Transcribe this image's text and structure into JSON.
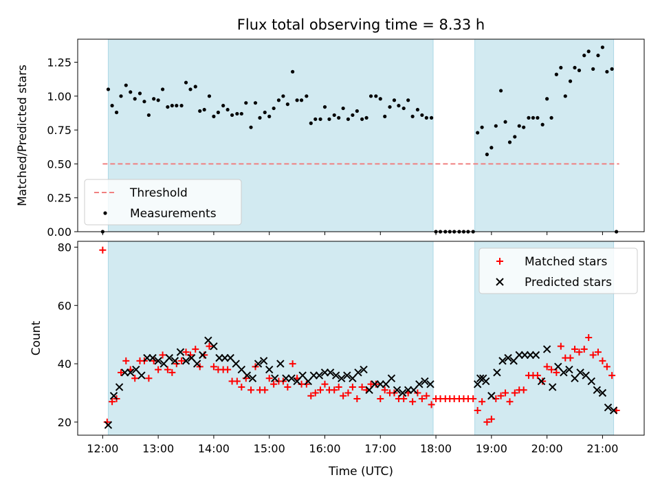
{
  "chart_data": {
    "title": "Flux total observing time = 8.33 h",
    "xlabel": "Time (UTC)",
    "xlim": [
      11.55,
      21.75
    ],
    "xticks": [
      {
        "v": 12,
        "label": "12:00"
      },
      {
        "v": 13,
        "label": "13:00"
      },
      {
        "v": 14,
        "label": "14:00"
      },
      {
        "v": 15,
        "label": "15:00"
      },
      {
        "v": 16,
        "label": "16:00"
      },
      {
        "v": 17,
        "label": "17:00"
      },
      {
        "v": 18,
        "label": "18:00"
      },
      {
        "v": 19,
        "label": "19:00"
      },
      {
        "v": 20,
        "label": "20:00"
      },
      {
        "v": 21,
        "label": "21:00"
      }
    ],
    "shaded_spans": [
      [
        12.1,
        17.95
      ],
      [
        18.7,
        21.2
      ]
    ],
    "shade_color": "#add8e6",
    "panels": [
      {
        "type": "scatter",
        "ylabel": "Matched/Predicted stars",
        "ylim": [
          0,
          1.42
        ],
        "yticks": [
          {
            "v": 0,
            "label": "0.00"
          },
          {
            "v": 0.25,
            "label": "0.25"
          },
          {
            "v": 0.5,
            "label": "0.50"
          },
          {
            "v": 0.75,
            "label": "0.75"
          },
          {
            "v": 1.0,
            "label": "1.00"
          },
          {
            "v": 1.25,
            "label": "1.25"
          }
        ],
        "legend": {
          "position": "lower-left",
          "entries": [
            {
              "label": "Threshold",
              "style": "dashed-line",
              "color": "#f08080"
            },
            {
              "label": "Measurements",
              "style": "dot",
              "color": "#000000"
            }
          ]
        },
        "threshold": {
          "name": "Threshold",
          "value": 0.5,
          "x_range": [
            12.0,
            21.3
          ],
          "color": "#f08080"
        },
        "series": [
          {
            "name": "Measurements",
            "marker": "dot",
            "color": "#000000",
            "x": [
              12.0,
              12.1,
              12.17,
              12.25,
              12.33,
              12.42,
              12.5,
              12.58,
              12.67,
              12.75,
              12.83,
              12.92,
              13.0,
              13.08,
              13.17,
              13.25,
              13.33,
              13.42,
              13.5,
              13.58,
              13.67,
              13.75,
              13.83,
              13.92,
              14.0,
              14.08,
              14.17,
              14.25,
              14.33,
              14.42,
              14.5,
              14.58,
              14.67,
              14.75,
              14.83,
              14.92,
              15.0,
              15.08,
              15.17,
              15.25,
              15.33,
              15.42,
              15.5,
              15.58,
              15.67,
              15.75,
              15.83,
              15.92,
              16.0,
              16.08,
              16.17,
              16.25,
              16.33,
              16.42,
              16.5,
              16.58,
              16.67,
              16.75,
              16.83,
              16.92,
              17.0,
              17.08,
              17.17,
              17.25,
              17.33,
              17.42,
              17.5,
              17.58,
              17.67,
              17.75,
              17.83,
              17.92,
              18.0,
              18.08,
              18.17,
              18.25,
              18.33,
              18.42,
              18.5,
              18.58,
              18.67,
              18.75,
              18.83,
              18.92,
              19.0,
              19.08,
              19.17,
              19.25,
              19.33,
              19.42,
              19.5,
              19.58,
              19.67,
              19.75,
              19.83,
              19.92,
              20.0,
              20.08,
              20.17,
              20.25,
              20.33,
              20.42,
              20.5,
              20.58,
              20.67,
              20.75,
              20.83,
              20.92,
              21.0,
              21.08,
              21.17,
              21.25
            ],
            "y": [
              0.0,
              1.05,
              0.93,
              0.88,
              1.0,
              1.08,
              1.03,
              0.98,
              1.02,
              0.96,
              0.86,
              0.98,
              0.97,
              1.05,
              0.92,
              0.93,
              0.93,
              0.93,
              1.1,
              1.05,
              1.07,
              0.89,
              0.9,
              1.0,
              0.85,
              0.88,
              0.93,
              0.9,
              0.86,
              0.87,
              0.87,
              0.95,
              0.77,
              0.95,
              0.84,
              0.88,
              0.85,
              0.91,
              0.97,
              1.0,
              0.94,
              1.18,
              0.97,
              0.97,
              1.0,
              0.8,
              0.83,
              0.83,
              0.92,
              0.83,
              0.86,
              0.84,
              0.91,
              0.83,
              0.86,
              0.89,
              0.83,
              0.84,
              1.0,
              1.0,
              0.98,
              0.85,
              0.92,
              0.97,
              0.93,
              0.91,
              0.97,
              0.85,
              0.9,
              0.86,
              0.84,
              0.84,
              0.0,
              0.0,
              0.0,
              0.0,
              0.0,
              0.0,
              0.0,
              0.0,
              0.0,
              0.73,
              0.77,
              0.57,
              0.62,
              0.78,
              1.04,
              0.81,
              0.66,
              0.7,
              0.78,
              0.77,
              0.84,
              0.84,
              0.84,
              0.79,
              0.98,
              0.84,
              1.16,
              1.21,
              1.0,
              1.11,
              1.21,
              1.19,
              1.3,
              1.33,
              1.2,
              1.3,
              1.36,
              1.18,
              1.2,
              0.0
            ]
          }
        ]
      },
      {
        "type": "scatter",
        "ylabel": "Count",
        "ylim": [
          15.5,
          82
        ],
        "yticks": [
          {
            "v": 20,
            "label": "20"
          },
          {
            "v": 40,
            "label": "40"
          },
          {
            "v": 60,
            "label": "60"
          },
          {
            "v": 80,
            "label": "80"
          }
        ],
        "legend": {
          "position": "top-right",
          "entries": [
            {
              "label": "Matched stars",
              "style": "plus",
              "color": "#ff0000"
            },
            {
              "label": "Predicted stars",
              "style": "x",
              "color": "#000000"
            }
          ]
        },
        "series": [
          {
            "name": "Matched stars",
            "marker": "plus",
            "color": "#ff0000",
            "x": [
              12.0,
              12.08,
              12.17,
              12.25,
              12.33,
              12.42,
              12.5,
              12.58,
              12.67,
              12.75,
              12.83,
              12.92,
              13.0,
              13.08,
              13.17,
              13.25,
              13.33,
              13.42,
              13.5,
              13.58,
              13.67,
              13.75,
              13.83,
              13.92,
              14.0,
              14.08,
              14.17,
              14.25,
              14.33,
              14.42,
              14.5,
              14.58,
              14.67,
              14.75,
              14.83,
              14.92,
              15.0,
              15.08,
              15.17,
              15.25,
              15.33,
              15.42,
              15.5,
              15.58,
              15.67,
              15.75,
              15.83,
              15.92,
              16.0,
              16.08,
              16.17,
              16.25,
              16.33,
              16.42,
              16.5,
              16.58,
              16.67,
              16.75,
              16.83,
              16.92,
              17.0,
              17.08,
              17.17,
              17.25,
              17.33,
              17.42,
              17.5,
              17.58,
              17.67,
              17.75,
              17.83,
              17.92,
              18.0,
              18.08,
              18.17,
              18.25,
              18.33,
              18.42,
              18.5,
              18.58,
              18.67,
              18.75,
              18.83,
              18.92,
              19.0,
              19.08,
              19.17,
              19.25,
              19.33,
              19.42,
              19.5,
              19.58,
              19.67,
              19.75,
              19.83,
              19.92,
              20.0,
              20.08,
              20.17,
              20.25,
              20.33,
              20.42,
              20.5,
              20.58,
              20.67,
              20.75,
              20.83,
              20.92,
              21.0,
              21.08,
              21.17,
              21.25
            ],
            "y": [
              79,
              20,
              27,
              28,
              37,
              41,
              38,
              35,
              41,
              41,
              35,
              41,
              38,
              43,
              38,
              37,
              40,
              41,
              44,
              43,
              45,
              39,
              43,
              46,
              39,
              38,
              38,
              38,
              34,
              34,
              32,
              35,
              31,
              39,
              31,
              31,
              35,
              33,
              34,
              34,
              32,
              40,
              35,
              33,
              33,
              29,
              30,
              31,
              33,
              31,
              31,
              32,
              29,
              30,
              32,
              28,
              32,
              31,
              33,
              33,
              28,
              31,
              30,
              30,
              28,
              28,
              30,
              27,
              30,
              28,
              29,
              26,
              28,
              28,
              28,
              28,
              28,
              28,
              28,
              28,
              28,
              24,
              27,
              20,
              21,
              28,
              29,
              30,
              27,
              30,
              31,
              31,
              36,
              36,
              36,
              34,
              39,
              38,
              37,
              46,
              42,
              42,
              45,
              44,
              45,
              49,
              43,
              44,
              41,
              39,
              36,
              24
            ]
          },
          {
            "name": "Predicted stars",
            "marker": "x",
            "color": "#000000",
            "x": [
              12.1,
              12.2,
              12.3,
              12.4,
              12.5,
              12.6,
              12.7,
              12.8,
              12.9,
              13.0,
              13.1,
              13.2,
              13.3,
              13.4,
              13.5,
              13.6,
              13.7,
              13.8,
              13.9,
              14.0,
              14.1,
              14.2,
              14.3,
              14.4,
              14.5,
              14.6,
              14.7,
              14.8,
              14.9,
              15.0,
              15.1,
              15.2,
              15.3,
              15.4,
              15.5,
              15.6,
              15.7,
              15.8,
              15.9,
              16.0,
              16.1,
              16.2,
              16.3,
              16.4,
              16.5,
              16.6,
              16.7,
              16.8,
              16.9,
              17.0,
              17.1,
              17.2,
              17.3,
              17.4,
              17.5,
              17.6,
              17.7,
              17.8,
              17.9,
              18.75,
              18.8,
              18.85,
              18.9,
              19.0,
              19.1,
              19.2,
              19.3,
              19.4,
              19.5,
              19.6,
              19.7,
              19.8,
              19.9,
              20.0,
              20.1,
              20.2,
              20.3,
              20.4,
              20.5,
              20.6,
              20.7,
              20.8,
              20.9,
              21.0,
              21.1,
              21.2
            ],
            "y": [
              19,
              29,
              32,
              37,
              37,
              38,
              36,
              42,
              42,
              41,
              40,
              42,
              41,
              44,
              41,
              42,
              40,
              43,
              48,
              46,
              42,
              42,
              42,
              40,
              38,
              36,
              35,
              40,
              41,
              38,
              35,
              40,
              35,
              35,
              34,
              36,
              34,
              36,
              36,
              37,
              37,
              36,
              35,
              36,
              35,
              37,
              38,
              31,
              33,
              33,
              33,
              35,
              31,
              30,
              31,
              31,
              33,
              34,
              33,
              33,
              35,
              35,
              34,
              29,
              37,
              41,
              42,
              41,
              43,
              43,
              43,
              43,
              34,
              45,
              32,
              39,
              37,
              38,
              35,
              37,
              36,
              34,
              31,
              30,
              25,
              24
            ]
          }
        ]
      }
    ]
  }
}
